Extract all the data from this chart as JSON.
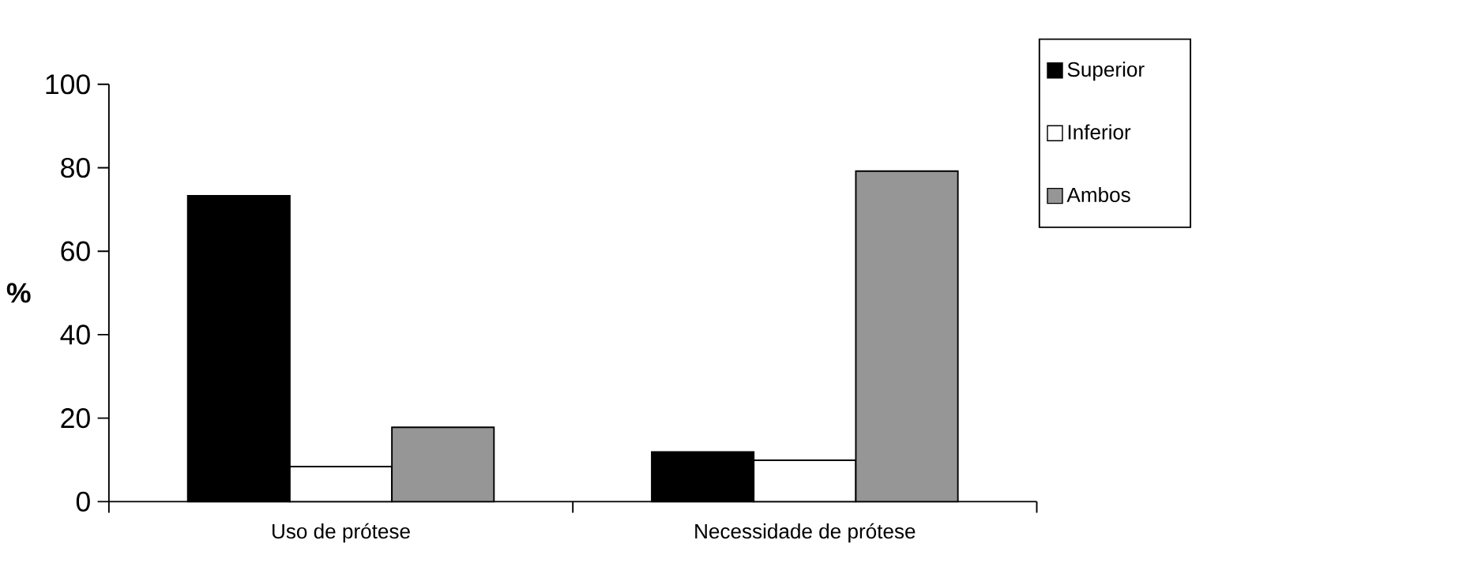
{
  "chart_data": {
    "type": "bar",
    "ylabel": "%",
    "categories": [
      "Uso de prótese",
      "Necessidade de prótese"
    ],
    "series": [
      {
        "name": "Superior",
        "color": "#000000",
        "values": [
          73.3,
          11.9
        ]
      },
      {
        "name": "Inferior",
        "color": "#ffffff",
        "values": [
          8.4,
          9.9
        ]
      },
      {
        "name": "Ambos",
        "color": "#969696",
        "values": [
          17.8,
          79.2
        ]
      }
    ],
    "ylim": [
      0,
      100
    ],
    "yticks": [
      0,
      20,
      40,
      60,
      80,
      100
    ],
    "grid": false,
    "legend": "top right"
  }
}
